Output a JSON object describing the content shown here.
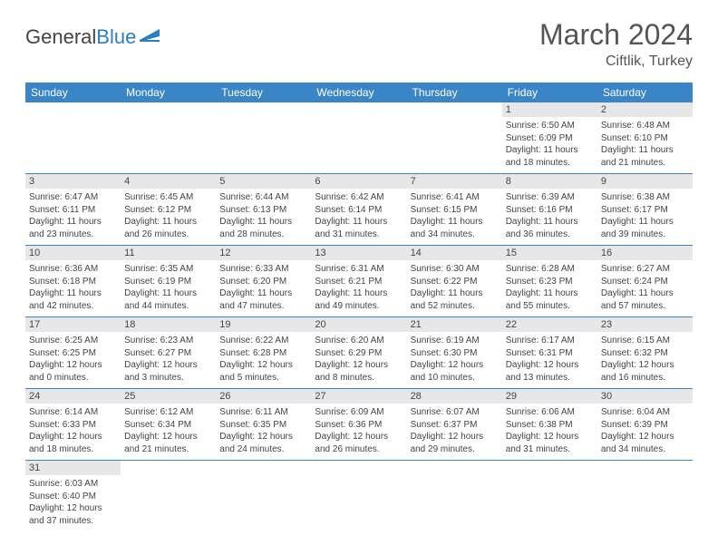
{
  "logo": {
    "text1": "General",
    "text2": "Blue"
  },
  "title": "March 2024",
  "location": "Ciftlik, Turkey",
  "colors": {
    "headerBg": "#3a85c6",
    "headerText": "#ffffff",
    "dayNumBg": "#e7e7e7",
    "border": "#3a85c6",
    "text": "#444444",
    "logoBlue": "#2b7fbf"
  },
  "weekdays": [
    "Sunday",
    "Monday",
    "Tuesday",
    "Wednesday",
    "Thursday",
    "Friday",
    "Saturday"
  ],
  "startOffset": 5,
  "days": [
    {
      "n": "1",
      "sunrise": "Sunrise: 6:50 AM",
      "sunset": "Sunset: 6:09 PM",
      "daylight": "Daylight: 11 hours and 18 minutes."
    },
    {
      "n": "2",
      "sunrise": "Sunrise: 6:48 AM",
      "sunset": "Sunset: 6:10 PM",
      "daylight": "Daylight: 11 hours and 21 minutes."
    },
    {
      "n": "3",
      "sunrise": "Sunrise: 6:47 AM",
      "sunset": "Sunset: 6:11 PM",
      "daylight": "Daylight: 11 hours and 23 minutes."
    },
    {
      "n": "4",
      "sunrise": "Sunrise: 6:45 AM",
      "sunset": "Sunset: 6:12 PM",
      "daylight": "Daylight: 11 hours and 26 minutes."
    },
    {
      "n": "5",
      "sunrise": "Sunrise: 6:44 AM",
      "sunset": "Sunset: 6:13 PM",
      "daylight": "Daylight: 11 hours and 28 minutes."
    },
    {
      "n": "6",
      "sunrise": "Sunrise: 6:42 AM",
      "sunset": "Sunset: 6:14 PM",
      "daylight": "Daylight: 11 hours and 31 minutes."
    },
    {
      "n": "7",
      "sunrise": "Sunrise: 6:41 AM",
      "sunset": "Sunset: 6:15 PM",
      "daylight": "Daylight: 11 hours and 34 minutes."
    },
    {
      "n": "8",
      "sunrise": "Sunrise: 6:39 AM",
      "sunset": "Sunset: 6:16 PM",
      "daylight": "Daylight: 11 hours and 36 minutes."
    },
    {
      "n": "9",
      "sunrise": "Sunrise: 6:38 AM",
      "sunset": "Sunset: 6:17 PM",
      "daylight": "Daylight: 11 hours and 39 minutes."
    },
    {
      "n": "10",
      "sunrise": "Sunrise: 6:36 AM",
      "sunset": "Sunset: 6:18 PM",
      "daylight": "Daylight: 11 hours and 42 minutes."
    },
    {
      "n": "11",
      "sunrise": "Sunrise: 6:35 AM",
      "sunset": "Sunset: 6:19 PM",
      "daylight": "Daylight: 11 hours and 44 minutes."
    },
    {
      "n": "12",
      "sunrise": "Sunrise: 6:33 AM",
      "sunset": "Sunset: 6:20 PM",
      "daylight": "Daylight: 11 hours and 47 minutes."
    },
    {
      "n": "13",
      "sunrise": "Sunrise: 6:31 AM",
      "sunset": "Sunset: 6:21 PM",
      "daylight": "Daylight: 11 hours and 49 minutes."
    },
    {
      "n": "14",
      "sunrise": "Sunrise: 6:30 AM",
      "sunset": "Sunset: 6:22 PM",
      "daylight": "Daylight: 11 hours and 52 minutes."
    },
    {
      "n": "15",
      "sunrise": "Sunrise: 6:28 AM",
      "sunset": "Sunset: 6:23 PM",
      "daylight": "Daylight: 11 hours and 55 minutes."
    },
    {
      "n": "16",
      "sunrise": "Sunrise: 6:27 AM",
      "sunset": "Sunset: 6:24 PM",
      "daylight": "Daylight: 11 hours and 57 minutes."
    },
    {
      "n": "17",
      "sunrise": "Sunrise: 6:25 AM",
      "sunset": "Sunset: 6:25 PM",
      "daylight": "Daylight: 12 hours and 0 minutes."
    },
    {
      "n": "18",
      "sunrise": "Sunrise: 6:23 AM",
      "sunset": "Sunset: 6:27 PM",
      "daylight": "Daylight: 12 hours and 3 minutes."
    },
    {
      "n": "19",
      "sunrise": "Sunrise: 6:22 AM",
      "sunset": "Sunset: 6:28 PM",
      "daylight": "Daylight: 12 hours and 5 minutes."
    },
    {
      "n": "20",
      "sunrise": "Sunrise: 6:20 AM",
      "sunset": "Sunset: 6:29 PM",
      "daylight": "Daylight: 12 hours and 8 minutes."
    },
    {
      "n": "21",
      "sunrise": "Sunrise: 6:19 AM",
      "sunset": "Sunset: 6:30 PM",
      "daylight": "Daylight: 12 hours and 10 minutes."
    },
    {
      "n": "22",
      "sunrise": "Sunrise: 6:17 AM",
      "sunset": "Sunset: 6:31 PM",
      "daylight": "Daylight: 12 hours and 13 minutes."
    },
    {
      "n": "23",
      "sunrise": "Sunrise: 6:15 AM",
      "sunset": "Sunset: 6:32 PM",
      "daylight": "Daylight: 12 hours and 16 minutes."
    },
    {
      "n": "24",
      "sunrise": "Sunrise: 6:14 AM",
      "sunset": "Sunset: 6:33 PM",
      "daylight": "Daylight: 12 hours and 18 minutes."
    },
    {
      "n": "25",
      "sunrise": "Sunrise: 6:12 AM",
      "sunset": "Sunset: 6:34 PM",
      "daylight": "Daylight: 12 hours and 21 minutes."
    },
    {
      "n": "26",
      "sunrise": "Sunrise: 6:11 AM",
      "sunset": "Sunset: 6:35 PM",
      "daylight": "Daylight: 12 hours and 24 minutes."
    },
    {
      "n": "27",
      "sunrise": "Sunrise: 6:09 AM",
      "sunset": "Sunset: 6:36 PM",
      "daylight": "Daylight: 12 hours and 26 minutes."
    },
    {
      "n": "28",
      "sunrise": "Sunrise: 6:07 AM",
      "sunset": "Sunset: 6:37 PM",
      "daylight": "Daylight: 12 hours and 29 minutes."
    },
    {
      "n": "29",
      "sunrise": "Sunrise: 6:06 AM",
      "sunset": "Sunset: 6:38 PM",
      "daylight": "Daylight: 12 hours and 31 minutes."
    },
    {
      "n": "30",
      "sunrise": "Sunrise: 6:04 AM",
      "sunset": "Sunset: 6:39 PM",
      "daylight": "Daylight: 12 hours and 34 minutes."
    },
    {
      "n": "31",
      "sunrise": "Sunrise: 6:03 AM",
      "sunset": "Sunset: 6:40 PM",
      "daylight": "Daylight: 12 hours and 37 minutes."
    }
  ]
}
